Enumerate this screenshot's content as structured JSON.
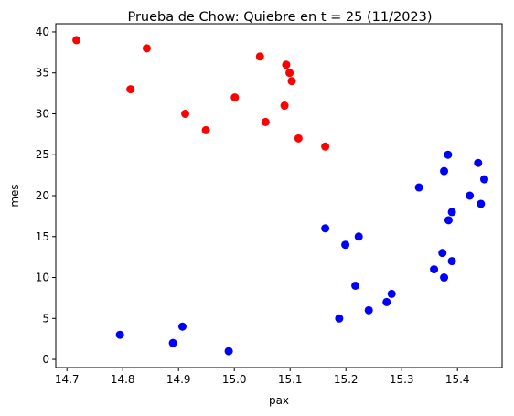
{
  "chart_data": {
    "type": "scatter",
    "title": "Prueba de Chow: Quiebre en t = 25 (11/2023)",
    "xlabel": "pax",
    "ylabel": "mes",
    "xlim": [
      14.68,
      15.48
    ],
    "ylim": [
      -1,
      41
    ],
    "xticks": [
      "14.7",
      "14.8",
      "14.9",
      "15.0",
      "15.1",
      "15.2",
      "15.3",
      "15.4"
    ],
    "yticks": [
      "0",
      "5",
      "10",
      "15",
      "20",
      "25",
      "30",
      "35",
      "40"
    ],
    "grid": false,
    "series": [
      {
        "color": "#0000ff",
        "points": [
          {
            "x": 14.99,
            "y": 1
          },
          {
            "x": 14.89,
            "y": 2
          },
          {
            "x": 14.795,
            "y": 3
          },
          {
            "x": 14.907,
            "y": 4
          },
          {
            "x": 15.188,
            "y": 5
          },
          {
            "x": 15.241,
            "y": 6
          },
          {
            "x": 15.273,
            "y": 7
          },
          {
            "x": 15.282,
            "y": 8
          },
          {
            "x": 15.217,
            "y": 9
          },
          {
            "x": 15.376,
            "y": 10
          },
          {
            "x": 15.358,
            "y": 11
          },
          {
            "x": 15.39,
            "y": 12
          },
          {
            "x": 15.373,
            "y": 13
          },
          {
            "x": 15.199,
            "y": 14
          },
          {
            "x": 15.223,
            "y": 15
          },
          {
            "x": 15.163,
            "y": 16
          },
          {
            "x": 15.384,
            "y": 17
          },
          {
            "x": 15.39,
            "y": 18
          },
          {
            "x": 15.442,
            "y": 19
          },
          {
            "x": 15.422,
            "y": 20
          },
          {
            "x": 15.331,
            "y": 21
          },
          {
            "x": 15.448,
            "y": 22
          },
          {
            "x": 15.376,
            "y": 23
          },
          {
            "x": 15.437,
            "y": 24
          },
          {
            "x": 15.383,
            "y": 25
          }
        ]
      },
      {
        "color": "#ff0000",
        "points": [
          {
            "x": 15.163,
            "y": 26
          },
          {
            "x": 15.115,
            "y": 27
          },
          {
            "x": 14.949,
            "y": 28
          },
          {
            "x": 15.056,
            "y": 29
          },
          {
            "x": 14.912,
            "y": 30
          },
          {
            "x": 15.09,
            "y": 31
          },
          {
            "x": 15.001,
            "y": 32
          },
          {
            "x": 14.814,
            "y": 33
          },
          {
            "x": 15.103,
            "y": 34
          },
          {
            "x": 15.099,
            "y": 35
          },
          {
            "x": 15.093,
            "y": 36
          },
          {
            "x": 15.046,
            "y": 37
          },
          {
            "x": 14.843,
            "y": 38
          },
          {
            "x": 14.717,
            "y": 39
          }
        ]
      }
    ]
  }
}
